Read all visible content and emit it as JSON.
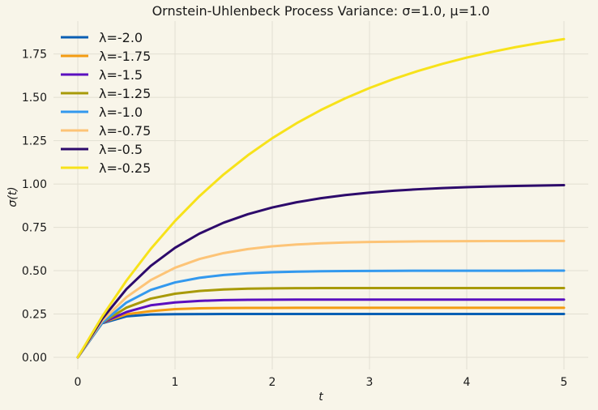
{
  "chart_data": {
    "type": "line",
    "title": "Ornstein-Uhlenbeck Process Variance: σ=1.0, μ=1.0",
    "xlabel": "t",
    "ylabel": "σ(t)",
    "xlim": [
      -0.25,
      5.25
    ],
    "ylim": [
      -0.07,
      1.94
    ],
    "x_ticks": [
      0,
      1,
      2,
      3,
      4,
      5
    ],
    "x_tick_labels": [
      "0",
      "1",
      "2",
      "3",
      "4",
      "5"
    ],
    "y_ticks": [
      0.0,
      0.25,
      0.5,
      0.75,
      1.0,
      1.25,
      1.5,
      1.75
    ],
    "y_tick_labels": [
      "0.00",
      "0.25",
      "0.50",
      "0.75",
      "1.00",
      "1.25",
      "1.50",
      "1.75"
    ],
    "grid": true,
    "legend_position": "top-left",
    "x": [
      0,
      0.25,
      0.5,
      0.75,
      1,
      1.25,
      1.5,
      1.75,
      2,
      2.25,
      2.5,
      2.75,
      3,
      3.25,
      3.5,
      3.75,
      4,
      4.25,
      4.5,
      4.75,
      5
    ],
    "series": [
      {
        "name": "λ=-2.0",
        "color": "#0a5fb4",
        "values": [
          0,
          0.1967,
          0.2366,
          0.2475,
          0.2491,
          0.2498,
          0.25,
          0.25,
          0.25,
          0.25,
          0.25,
          0.25,
          0.25,
          0.25,
          0.25,
          0.25,
          0.25,
          0.25,
          0.25,
          0.25,
          0.25
        ]
      },
      {
        "name": "λ=-1.75",
        "color": "#f39c12",
        "values": [
          0,
          0.2,
          0.2483,
          0.2666,
          0.2785,
          0.2828,
          0.2847,
          0.2853,
          0.2855,
          0.2857,
          0.2857,
          0.2857,
          0.2857,
          0.2857,
          0.2857,
          0.2857,
          0.2857,
          0.2857,
          0.2857,
          0.2857,
          0.2857
        ]
      },
      {
        "name": "λ=-1.5",
        "color": "#5b0fbf",
        "values": [
          0,
          0.2,
          0.2615,
          0.3002,
          0.3168,
          0.3256,
          0.3304,
          0.3321,
          0.3328,
          0.3331,
          0.3333,
          0.3333,
          0.3333,
          0.3333,
          0.3333,
          0.3333,
          0.3333,
          0.3333,
          0.3333,
          0.3333,
          0.3333
        ]
      },
      {
        "name": "λ=-1.25",
        "color": "#a89a08",
        "values": [
          0,
          0.2,
          0.2866,
          0.3387,
          0.3672,
          0.383,
          0.3918,
          0.3962,
          0.3983,
          0.3992,
          0.3997,
          0.3999,
          0.4,
          0.4,
          0.4,
          0.4,
          0.4,
          0.4,
          0.4,
          0.4,
          0.4
        ]
      },
      {
        "name": "λ=-1.0",
        "color": "#3399ee",
        "values": [
          0,
          0.2,
          0.3161,
          0.3888,
          0.4323,
          0.4589,
          0.4751,
          0.4849,
          0.4908,
          0.4944,
          0.4966,
          0.498,
          0.4988,
          0.4993,
          0.4996,
          0.4997,
          0.4998,
          0.4999,
          0.4999,
          0.5,
          0.5
        ]
      },
      {
        "name": "λ=-0.75",
        "color": "#fdc477",
        "values": [
          0,
          0.21,
          0.3468,
          0.4455,
          0.5171,
          0.5672,
          0.6015,
          0.6248,
          0.6403,
          0.6508,
          0.6578,
          0.6625,
          0.6656,
          0.6676,
          0.6689,
          0.6698,
          0.6704,
          0.6708,
          0.671,
          0.6712,
          0.6713
        ]
      },
      {
        "name": "λ=-0.5",
        "color": "#2d0a6b",
        "values": [
          0,
          0.2212,
          0.3935,
          0.5276,
          0.6321,
          0.7135,
          0.7769,
          0.8262,
          0.8647,
          0.8946,
          0.9179,
          0.9361,
          0.9502,
          0.9612,
          0.9698,
          0.9765,
          0.9817,
          0.9857,
          0.9889,
          0.9913,
          0.9933
        ]
      },
      {
        "name": "λ=-0.25",
        "color": "#f7e21a",
        "values": [
          0,
          0.2351,
          0.4424,
          0.6254,
          0.7869,
          0.9294,
          1.0552,
          1.1662,
          1.2642,
          1.3506,
          1.4269,
          1.4942,
          1.5537,
          1.6061,
          1.6524,
          1.6932,
          1.7293,
          1.761,
          1.7891,
          1.8139,
          1.8358
        ]
      }
    ]
  }
}
